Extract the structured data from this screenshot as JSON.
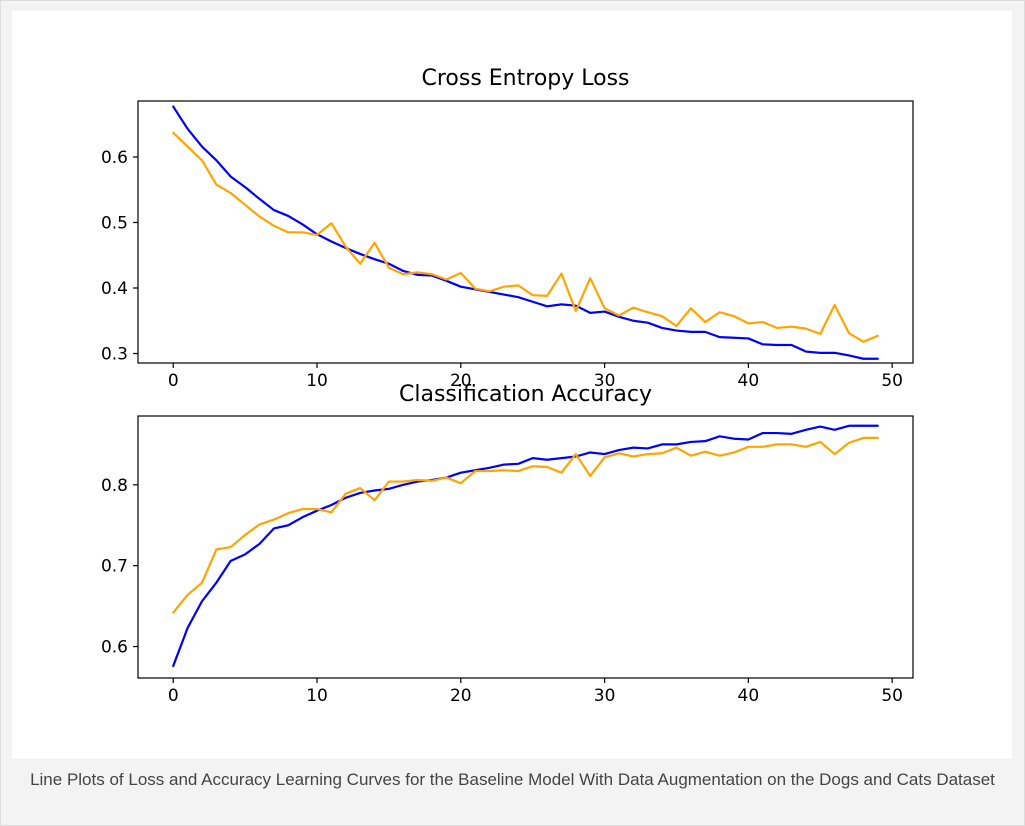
{
  "caption": "Line Plots of Loss and Accuracy Learning Curves for the Baseline Model With Data Augmentation on the Dogs and Cats Dataset",
  "colors": {
    "train": "#0000ff",
    "test": "#ffa500",
    "axes": "#000000",
    "caption": "#444444"
  },
  "chart_data": [
    {
      "type": "line",
      "title": "Cross Entropy Loss",
      "xlabel": "",
      "ylabel": "",
      "xlim": [
        -2.45,
        51.45
      ],
      "ylim": [
        0.2855,
        0.6855
      ],
      "xticks": [
        0,
        10,
        20,
        30,
        40,
        50
      ],
      "yticks": [
        0.3,
        0.4,
        0.5,
        0.6
      ],
      "grid": false,
      "series": [
        {
          "color": "#0000ff",
          "x": [
            0,
            1,
            2,
            3,
            4,
            5,
            6,
            7,
            8,
            9,
            10,
            11,
            12,
            13,
            14,
            15,
            16,
            17,
            18,
            19,
            20,
            21,
            22,
            23,
            24,
            25,
            26,
            27,
            28,
            29,
            30,
            31,
            32,
            33,
            34,
            35,
            36,
            37,
            38,
            39,
            40,
            41,
            42,
            43,
            44,
            45,
            46,
            47,
            48,
            49
          ],
          "values": [
            0.677,
            0.643,
            0.616,
            0.595,
            0.57,
            0.554,
            0.536,
            0.519,
            0.51,
            0.497,
            0.482,
            0.471,
            0.461,
            0.452,
            0.444,
            0.437,
            0.426,
            0.42,
            0.419,
            0.411,
            0.402,
            0.398,
            0.394,
            0.39,
            0.386,
            0.379,
            0.372,
            0.375,
            0.373,
            0.362,
            0.364,
            0.356,
            0.35,
            0.347,
            0.339,
            0.335,
            0.333,
            0.333,
            0.325,
            0.324,
            0.323,
            0.314,
            0.313,
            0.313,
            0.303,
            0.301,
            0.301,
            0.297,
            0.292,
            0.292
          ]
        },
        {
          "color": "#ffa500",
          "x": [
            0,
            1,
            2,
            3,
            4,
            5,
            6,
            7,
            8,
            9,
            10,
            11,
            12,
            13,
            14,
            15,
            16,
            17,
            18,
            19,
            20,
            21,
            22,
            23,
            24,
            25,
            26,
            27,
            28,
            29,
            30,
            31,
            32,
            33,
            34,
            35,
            36,
            37,
            38,
            39,
            40,
            41,
            42,
            43,
            44,
            45,
            46,
            47,
            48,
            49
          ],
          "values": [
            0.637,
            0.616,
            0.595,
            0.558,
            0.545,
            0.527,
            0.509,
            0.495,
            0.485,
            0.485,
            0.481,
            0.499,
            0.463,
            0.437,
            0.469,
            0.431,
            0.421,
            0.424,
            0.421,
            0.413,
            0.423,
            0.399,
            0.395,
            0.402,
            0.404,
            0.389,
            0.388,
            0.422,
            0.365,
            0.415,
            0.369,
            0.358,
            0.37,
            0.363,
            0.357,
            0.342,
            0.369,
            0.348,
            0.363,
            0.357,
            0.346,
            0.348,
            0.339,
            0.341,
            0.338,
            0.33,
            0.374,
            0.331,
            0.318,
            0.327
          ]
        }
      ]
    },
    {
      "type": "line",
      "title": "Classification Accuracy",
      "xlabel": "",
      "ylabel": "",
      "xlim": [
        -2.45,
        51.45
      ],
      "ylim": [
        0.5611,
        0.8851
      ],
      "xticks": [
        0,
        10,
        20,
        30,
        40,
        50
      ],
      "yticks": [
        0.6,
        0.7,
        0.8
      ],
      "grid": false,
      "series": [
        {
          "color": "#0000ff",
          "x": [
            0,
            1,
            2,
            3,
            4,
            5,
            6,
            7,
            8,
            9,
            10,
            11,
            12,
            13,
            14,
            15,
            16,
            17,
            18,
            19,
            20,
            21,
            22,
            23,
            24,
            25,
            26,
            27,
            28,
            29,
            30,
            31,
            32,
            33,
            34,
            35,
            36,
            37,
            38,
            39,
            40,
            41,
            42,
            43,
            44,
            45,
            46,
            47,
            48,
            49
          ],
          "values": [
            0.576,
            0.623,
            0.656,
            0.679,
            0.706,
            0.714,
            0.727,
            0.746,
            0.75,
            0.76,
            0.768,
            0.775,
            0.784,
            0.79,
            0.793,
            0.795,
            0.8,
            0.804,
            0.806,
            0.809,
            0.815,
            0.818,
            0.821,
            0.825,
            0.826,
            0.833,
            0.831,
            0.833,
            0.835,
            0.84,
            0.838,
            0.843,
            0.846,
            0.845,
            0.85,
            0.85,
            0.853,
            0.854,
            0.86,
            0.857,
            0.856,
            0.864,
            0.864,
            0.863,
            0.868,
            0.872,
            0.868,
            0.873,
            0.873,
            0.873
          ]
        },
        {
          "color": "#ffa500",
          "x": [
            0,
            1,
            2,
            3,
            4,
            5,
            6,
            7,
            8,
            9,
            10,
            11,
            12,
            13,
            14,
            15,
            16,
            17,
            18,
            19,
            20,
            21,
            22,
            23,
            24,
            25,
            26,
            27,
            28,
            29,
            30,
            31,
            32,
            33,
            34,
            35,
            36,
            37,
            38,
            39,
            40,
            41,
            42,
            43,
            44,
            45,
            46,
            47,
            48,
            49
          ],
          "values": [
            0.642,
            0.664,
            0.679,
            0.72,
            0.723,
            0.738,
            0.751,
            0.757,
            0.765,
            0.77,
            0.77,
            0.766,
            0.789,
            0.796,
            0.781,
            0.804,
            0.804,
            0.806,
            0.805,
            0.809,
            0.802,
            0.817,
            0.817,
            0.818,
            0.817,
            0.823,
            0.822,
            0.815,
            0.838,
            0.811,
            0.834,
            0.839,
            0.835,
            0.838,
            0.839,
            0.846,
            0.836,
            0.841,
            0.836,
            0.84,
            0.847,
            0.847,
            0.85,
            0.85,
            0.847,
            0.853,
            0.838,
            0.852,
            0.858,
            0.858
          ]
        }
      ]
    }
  ]
}
